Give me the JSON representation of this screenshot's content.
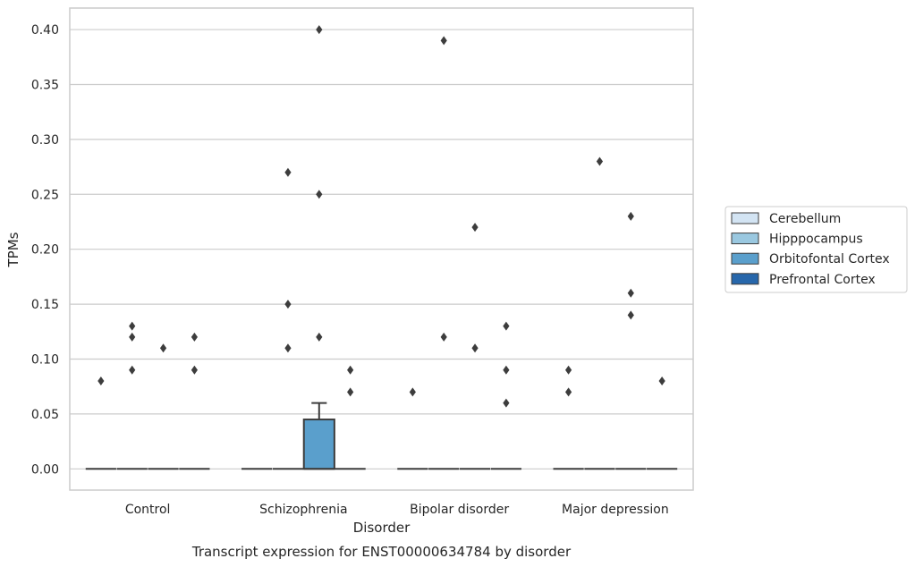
{
  "chart_data": {
    "type": "box",
    "caption": "Transcript expression for ENST00000634784 by disorder",
    "xlabel": "Disorder",
    "ylabel": "TPMs",
    "ylim": [
      -0.0193,
      0.4196
    ],
    "yticks": [
      "0.00",
      "0.05",
      "0.10",
      "0.15",
      "0.20",
      "0.25",
      "0.30",
      "0.35",
      "0.40"
    ],
    "grid": true,
    "legend_placement": "right",
    "categories": [
      "Control",
      "Schizophrenia",
      "Bipolar disorder",
      "Major depression"
    ],
    "series": [
      {
        "name": "Cerebellum",
        "color": "#d3e4f3",
        "boxes": [
          {
            "q1": 0,
            "median": 0,
            "q3": 0,
            "whisker_low": 0,
            "whisker_high": 0,
            "outliers": [
              0.08
            ]
          },
          {
            "q1": 0,
            "median": 0,
            "q3": 0,
            "whisker_low": 0,
            "whisker_high": 0,
            "outliers": []
          },
          {
            "q1": 0,
            "median": 0,
            "q3": 0,
            "whisker_low": 0,
            "whisker_high": 0,
            "outliers": [
              0.07
            ]
          },
          {
            "q1": 0,
            "median": 0,
            "q3": 0,
            "whisker_low": 0,
            "whisker_high": 0,
            "outliers": [
              0.09,
              0.07
            ]
          }
        ]
      },
      {
        "name": "Hipppocampus",
        "color": "#9ac8e0",
        "boxes": [
          {
            "q1": 0,
            "median": 0,
            "q3": 0,
            "whisker_low": 0,
            "whisker_high": 0,
            "outliers": [
              0.13,
              0.12,
              0.09
            ]
          },
          {
            "q1": 0,
            "median": 0,
            "q3": 0,
            "whisker_low": 0,
            "whisker_high": 0,
            "outliers": [
              0.27,
              0.15,
              0.11
            ]
          },
          {
            "q1": 0,
            "median": 0,
            "q3": 0,
            "whisker_low": 0,
            "whisker_high": 0,
            "outliers": [
              0.39,
              0.12
            ]
          },
          {
            "q1": 0,
            "median": 0,
            "q3": 0,
            "whisker_low": 0,
            "whisker_high": 0,
            "outliers": [
              0.28
            ]
          }
        ]
      },
      {
        "name": "Orbitofontal Cortex",
        "color": "#5a9fcc",
        "boxes": [
          {
            "q1": 0,
            "median": 0,
            "q3": 0,
            "whisker_low": 0,
            "whisker_high": 0,
            "outliers": [
              0.11
            ]
          },
          {
            "q1": 0,
            "median": 0,
            "q3": 0.045,
            "whisker_low": 0,
            "whisker_high": 0.06,
            "outliers": [
              0.4,
              0.25,
              0.12
            ]
          },
          {
            "q1": 0,
            "median": 0,
            "q3": 0,
            "whisker_low": 0,
            "whisker_high": 0,
            "outliers": [
              0.22,
              0.11
            ]
          },
          {
            "q1": 0,
            "median": 0,
            "q3": 0,
            "whisker_low": 0,
            "whisker_high": 0,
            "outliers": [
              0.23,
              0.16,
              0.14
            ]
          }
        ]
      },
      {
        "name": "Prefrontal Cortex",
        "color": "#2767ab",
        "boxes": [
          {
            "q1": 0,
            "median": 0,
            "q3": 0,
            "whisker_low": 0,
            "whisker_high": 0,
            "outliers": [
              0.12,
              0.09
            ]
          },
          {
            "q1": 0,
            "median": 0,
            "q3": 0,
            "whisker_low": 0,
            "whisker_high": 0,
            "outliers": [
              0.09,
              0.07
            ]
          },
          {
            "q1": 0,
            "median": 0,
            "q3": 0,
            "whisker_low": 0,
            "whisker_high": 0,
            "outliers": [
              0.13,
              0.09,
              0.06
            ]
          },
          {
            "q1": 0,
            "median": 0,
            "q3": 0,
            "whisker_low": 0,
            "whisker_high": 0,
            "outliers": [
              0.08
            ]
          }
        ]
      }
    ],
    "styling": {
      "box_edge_color": "#3d3d3d",
      "grid_color": "#cccccc",
      "frame_color": "#cccccc",
      "outlier_color": "#3d3d3d"
    }
  }
}
